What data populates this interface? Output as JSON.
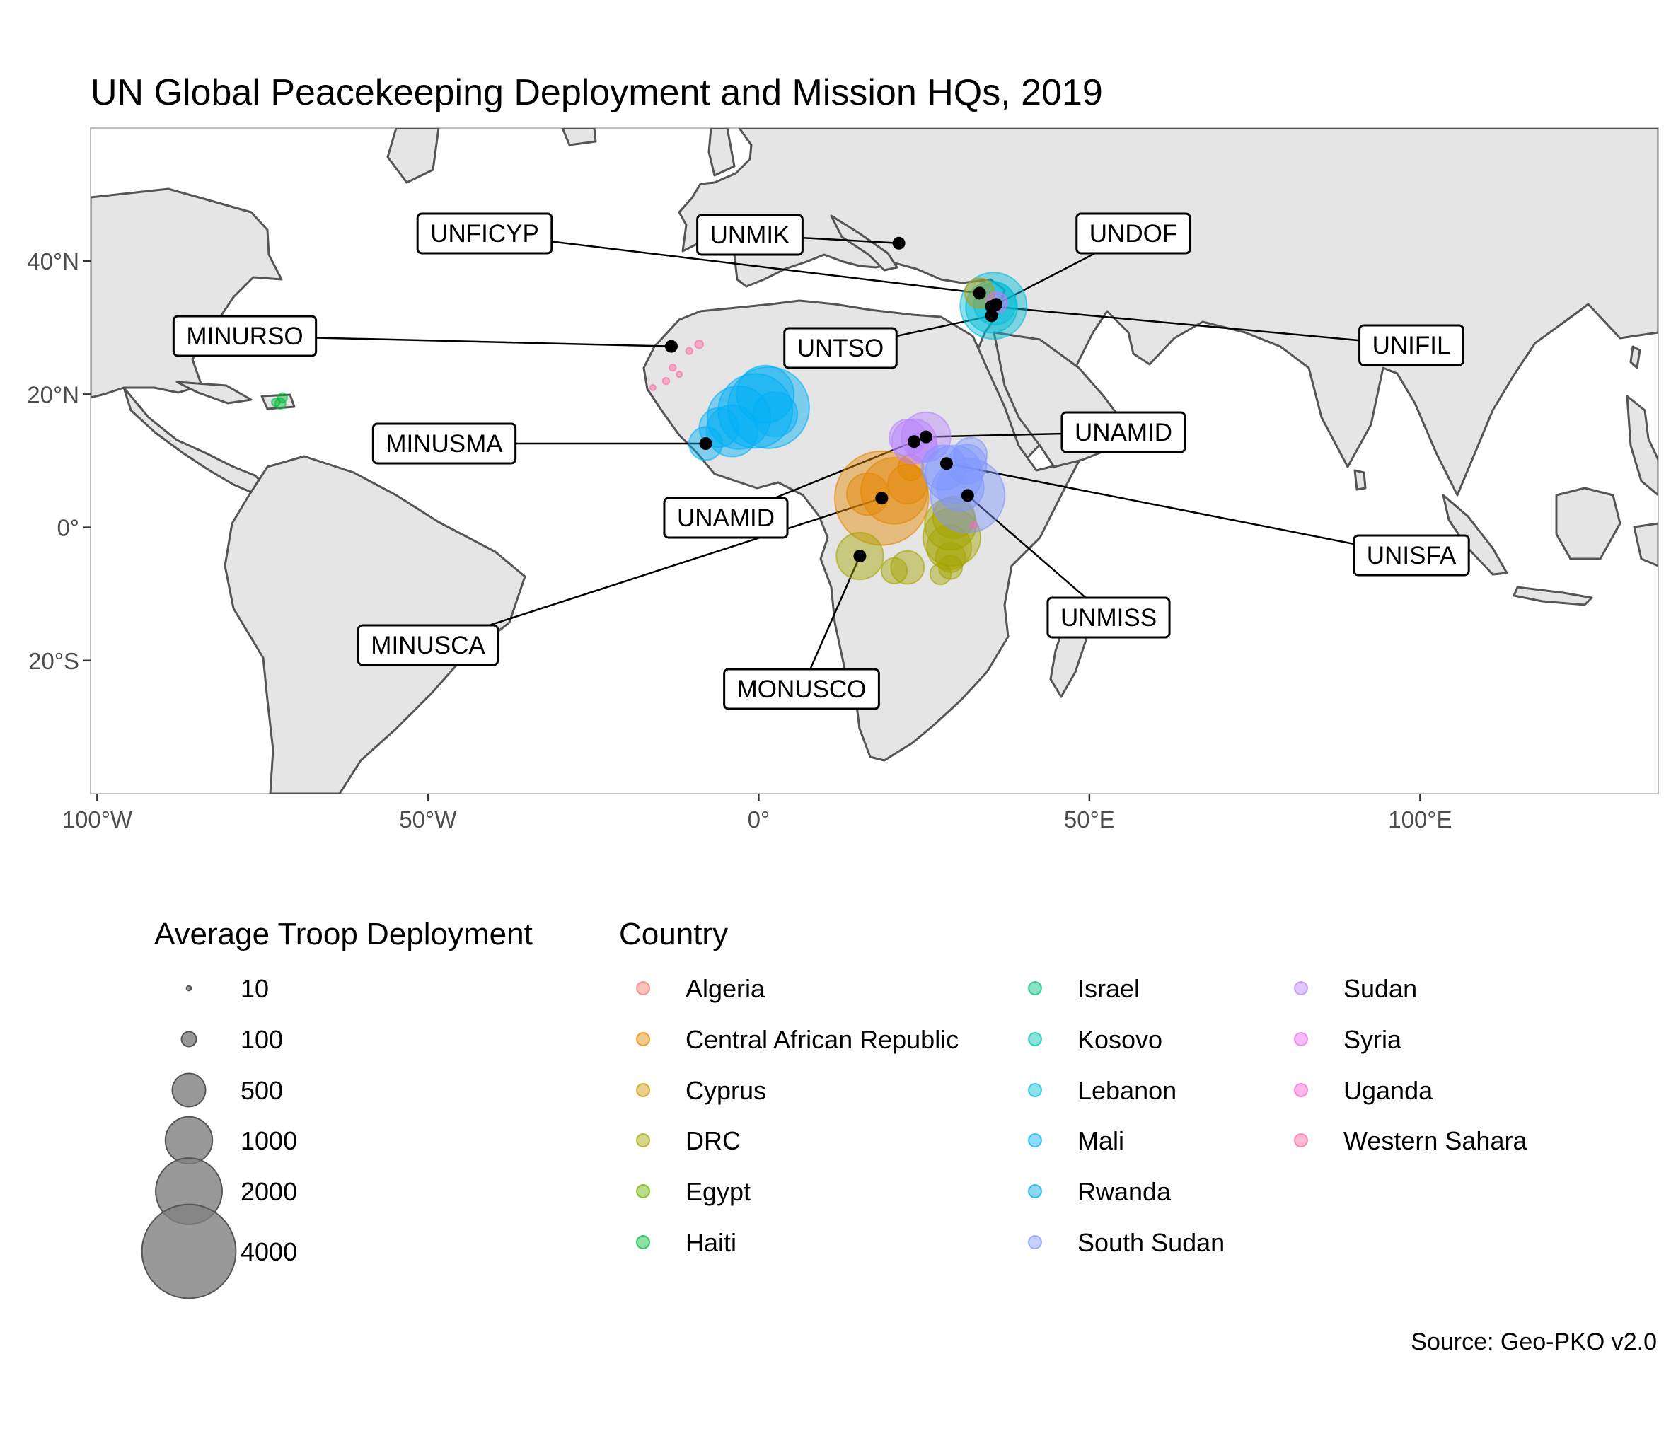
{
  "title": "UN Global Peacekeeping Deployment and Mission HQs, 2019",
  "caption": "Source: Geo-PKO v2.0",
  "map": {
    "lon_range": [
      -101,
      136
    ],
    "lat_range": [
      -40,
      60
    ],
    "x_ticks": [
      {
        "lon": -100,
        "label": "100°W"
      },
      {
        "lon": -50,
        "label": "50°W"
      },
      {
        "lon": 0,
        "label": "0°"
      },
      {
        "lon": 50,
        "label": "50°E"
      },
      {
        "lon": 100,
        "label": "100°E"
      }
    ],
    "y_ticks": [
      {
        "lat": 40,
        "label": "40°N"
      },
      {
        "lat": 20,
        "label": "20°N"
      },
      {
        "lat": 0,
        "label": "0°"
      },
      {
        "lat": -20,
        "label": "20°S"
      }
    ],
    "land_fill": "#e5e5e5",
    "border_color": "#555555",
    "panel_bg": "#ffffff"
  },
  "headquarters": [
    {
      "mission": "UNFICYP",
      "lon": 33.4,
      "lat": 35.2
    },
    {
      "mission": "UNMIK",
      "lon": 21.2,
      "lat": 42.7
    },
    {
      "mission": "UNDOF",
      "lon": 35.9,
      "lat": 33.5
    },
    {
      "mission": "UNIFIL",
      "lon": 35.2,
      "lat": 33.2
    },
    {
      "mission": "UNTSO",
      "lon": 35.2,
      "lat": 31.8
    },
    {
      "mission": "MINURSO",
      "lon": -13.2,
      "lat": 27.2
    },
    {
      "mission": "MINUSMA",
      "lon": -8.0,
      "lat": 12.6
    },
    {
      "mission": "UNAMID",
      "lon": 25.3,
      "lat": 13.6
    },
    {
      "mission": "UNAMID",
      "lon": 23.5,
      "lat": 12.9
    },
    {
      "mission": "UNISFA",
      "lon": 28.4,
      "lat": 9.6
    },
    {
      "mission": "UNMISS",
      "lon": 31.6,
      "lat": 4.8
    },
    {
      "mission": "MINUSCA",
      "lon": 18.6,
      "lat": 4.4
    },
    {
      "mission": "MONUSCO",
      "lon": 15.3,
      "lat": -4.3
    }
  ],
  "legend_size": {
    "title": "Average Troop Deployment",
    "items": [
      {
        "label": "10",
        "value": 10
      },
      {
        "label": "100",
        "value": 100
      },
      {
        "label": "500",
        "value": 500
      },
      {
        "label": "1000",
        "value": 1000
      },
      {
        "label": "2000",
        "value": 2000
      },
      {
        "label": "4000",
        "value": 4000
      }
    ]
  },
  "legend_country": {
    "title": "Country",
    "items": [
      {
        "label": "Algeria",
        "color": "#F8766D"
      },
      {
        "label": "Central African Republic",
        "color": "#E58700"
      },
      {
        "label": "Cyprus",
        "color": "#C99800"
      },
      {
        "label": "DRC",
        "color": "#A3A500"
      },
      {
        "label": "Egypt",
        "color": "#6BB100"
      },
      {
        "label": "Haiti",
        "color": "#00BA38"
      },
      {
        "label": "Israel",
        "color": "#00BF7D"
      },
      {
        "label": "Kosovo",
        "color": "#00C0AF"
      },
      {
        "label": "Lebanon",
        "color": "#00BCD8"
      },
      {
        "label": "Mali",
        "color": "#00B0F6"
      },
      {
        "label": "Rwanda",
        "color": "#00A7E0"
      },
      {
        "label": "South Sudan",
        "color": "#7F96FF"
      },
      {
        "label": "Sudan",
        "color": "#B983FF"
      },
      {
        "label": "Syria",
        "color": "#E76BF3"
      },
      {
        "label": "Uganda",
        "color": "#FD61D1"
      },
      {
        "label": "Western Sahara",
        "color": "#FF67A4"
      }
    ]
  },
  "chart_data": {
    "type": "scatter",
    "title": "UN Global Peacekeeping Deployment and Mission HQs, 2019",
    "x_axis": "longitude",
    "y_axis": "latitude",
    "xlim": [
      -101,
      136
    ],
    "ylim": [
      -40,
      60
    ],
    "size_variable": "Average Troop Deployment",
    "color_variable": "Country",
    "series": [
      {
        "name": "Mali",
        "points": [
          {
            "lon": -0.5,
            "lat": 17.5,
            "troops": 2500
          },
          {
            "lon": 1.5,
            "lat": 18.0,
            "troops": 3000
          },
          {
            "lon": -3.0,
            "lat": 16.5,
            "troops": 1800
          },
          {
            "lon": -4.0,
            "lat": 14.5,
            "troops": 1200
          },
          {
            "lon": 1.0,
            "lat": 20.0,
            "troops": 1500
          },
          {
            "lon": -6.0,
            "lat": 15.0,
            "troops": 700
          },
          {
            "lon": -8.0,
            "lat": 12.6,
            "troops": 500
          },
          {
            "lon": 2.5,
            "lat": 17.0,
            "troops": 900
          }
        ]
      },
      {
        "name": "Lebanon",
        "points": [
          {
            "lon": 35.5,
            "lat": 33.3,
            "troops": 2000
          },
          {
            "lon": 35.2,
            "lat": 33.1,
            "troops": 1200
          },
          {
            "lon": 35.7,
            "lat": 33.6,
            "troops": 800
          }
        ]
      },
      {
        "name": "Central African Republic",
        "points": [
          {
            "lon": 18.6,
            "lat": 4.4,
            "troops": 4000
          },
          {
            "lon": 20.5,
            "lat": 5.5,
            "troops": 2000
          },
          {
            "lon": 16.5,
            "lat": 5.0,
            "troops": 800
          },
          {
            "lon": 22.5,
            "lat": 6.5,
            "troops": 700
          },
          {
            "lon": 23.0,
            "lat": 9.0,
            "troops": 300
          }
        ]
      },
      {
        "name": "DRC",
        "points": [
          {
            "lon": 29.0,
            "lat": 0.5,
            "troops": 1200
          },
          {
            "lon": 29.2,
            "lat": -1.5,
            "troops": 1500
          },
          {
            "lon": 28.8,
            "lat": -3.0,
            "troops": 900
          },
          {
            "lon": 29.5,
            "lat": 1.5,
            "troops": 800
          },
          {
            "lon": 15.3,
            "lat": -4.3,
            "troops": 1000
          },
          {
            "lon": 22.5,
            "lat": -6.0,
            "troops": 500
          },
          {
            "lon": 20.5,
            "lat": -6.5,
            "troops": 300
          },
          {
            "lon": 27.5,
            "lat": -7.0,
            "troops": 200
          },
          {
            "lon": 29.0,
            "lat": -6.0,
            "troops": 250
          },
          {
            "lon": 29.0,
            "lat": -4.5,
            "troops": 400
          }
        ]
      },
      {
        "name": "Sudan",
        "points": [
          {
            "lon": 25.3,
            "lat": 13.6,
            "troops": 1100
          },
          {
            "lon": 23.5,
            "lat": 12.9,
            "troops": 900
          },
          {
            "lon": 22.5,
            "lat": 13.5,
            "troops": 600
          },
          {
            "lon": 24.8,
            "lat": 12.0,
            "troops": 400
          }
        ]
      },
      {
        "name": "South Sudan",
        "points": [
          {
            "lon": 31.6,
            "lat": 4.8,
            "troops": 2500
          },
          {
            "lon": 29.5,
            "lat": 8.0,
            "troops": 1500
          },
          {
            "lon": 28.0,
            "lat": 9.0,
            "troops": 900
          },
          {
            "lon": 31.5,
            "lat": 9.5,
            "troops": 700
          },
          {
            "lon": 30.5,
            "lat": 6.0,
            "troops": 1000
          },
          {
            "lon": 32.0,
            "lat": 11.0,
            "troops": 500
          }
        ]
      },
      {
        "name": "Western Sahara",
        "points": [
          {
            "lon": -9.0,
            "lat": 27.5,
            "troops": 30
          },
          {
            "lon": -10.5,
            "lat": 26.5,
            "troops": 20
          },
          {
            "lon": -13.0,
            "lat": 24.0,
            "troops": 20
          },
          {
            "lon": -14.0,
            "lat": 22.0,
            "troops": 20
          },
          {
            "lon": -16.0,
            "lat": 21.0,
            "troops": 15
          },
          {
            "lon": -12.0,
            "lat": 23.0,
            "troops": 15
          }
        ]
      },
      {
        "name": "Haiti",
        "points": [
          {
            "lon": -72.3,
            "lat": 18.6,
            "troops": 50
          },
          {
            "lon": -72.0,
            "lat": 19.5,
            "troops": 40
          },
          {
            "lon": -73.0,
            "lat": 18.8,
            "troops": 30
          }
        ]
      },
      {
        "name": "Cyprus",
        "points": [
          {
            "lon": 33.4,
            "lat": 35.2,
            "troops": 400
          }
        ]
      },
      {
        "name": "Syria",
        "points": [
          {
            "lon": 36.0,
            "lat": 33.8,
            "troops": 200
          }
        ]
      },
      {
        "name": "Uganda",
        "points": [
          {
            "lon": 32.5,
            "lat": 0.3,
            "troops": 20
          }
        ]
      }
    ]
  }
}
